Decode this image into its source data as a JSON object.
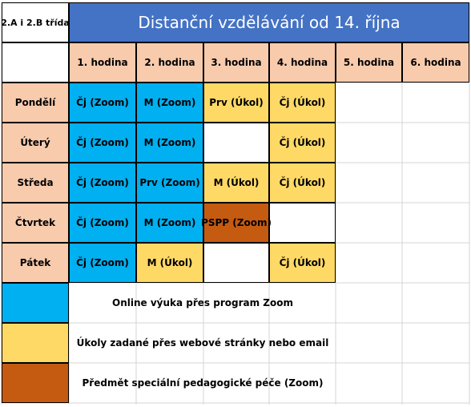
{
  "corner_label": "2.A i 2.B třída",
  "title": "Distanční vzdělávání  od 14. října",
  "hours": [
    "1. hodina",
    "2. hodina",
    "3. hodina",
    "4. hodina",
    "5. hodina",
    "6. hodina"
  ],
  "rows": [
    {
      "day": "Pondělí",
      "cells": [
        {
          "text": "Čj (Zoom)",
          "type": "zoom"
        },
        {
          "text": "M (Zoom)",
          "type": "zoom"
        },
        {
          "text": "Prv (Úkol)",
          "type": "ukol"
        },
        {
          "text": "Čj (Úkol)",
          "type": "ukol"
        },
        {
          "text": "",
          "type": "empty"
        },
        {
          "text": "",
          "type": "empty"
        }
      ]
    },
    {
      "day": "Úterý",
      "cells": [
        {
          "text": "Čj (Zoom)",
          "type": "zoom"
        },
        {
          "text": "M (Zoom)",
          "type": "zoom"
        },
        {
          "text": "",
          "type": "blank"
        },
        {
          "text": "Čj (Úkol)",
          "type": "ukol"
        },
        {
          "text": "",
          "type": "empty"
        },
        {
          "text": "",
          "type": "empty"
        }
      ]
    },
    {
      "day": "Středa",
      "cells": [
        {
          "text": "Čj (Zoom)",
          "type": "zoom"
        },
        {
          "text": "Prv (Zoom)",
          "type": "zoom"
        },
        {
          "text": "M (Úkol)",
          "type": "ukol"
        },
        {
          "text": "Čj (Úkol)",
          "type": "ukol"
        },
        {
          "text": "",
          "type": "empty"
        },
        {
          "text": "",
          "type": "empty"
        }
      ]
    },
    {
      "day": "Čtvrtek",
      "cells": [
        {
          "text": "Čj (Zoom)",
          "type": "zoom"
        },
        {
          "text": "M (Zoom)",
          "type": "zoom"
        },
        {
          "text": "PSPP (Zoom)",
          "type": "pspp"
        },
        {
          "text": "",
          "type": "blank"
        },
        {
          "text": "",
          "type": "empty"
        },
        {
          "text": "",
          "type": "empty"
        }
      ]
    },
    {
      "day": "Pátek",
      "cells": [
        {
          "text": "Čj (Zoom)",
          "type": "zoom"
        },
        {
          "text": "M (Úkol)",
          "type": "ukol"
        },
        {
          "text": "",
          "type": "blank"
        },
        {
          "text": "Čj (Úkol)",
          "type": "ukol"
        },
        {
          "text": "",
          "type": "empty"
        },
        {
          "text": "",
          "type": "empty"
        }
      ]
    }
  ],
  "legend": [
    {
      "type": "zoom",
      "text": "Online výuka přes program Zoom"
    },
    {
      "type": "ukol",
      "text": "Úkoly zadané přes webové stránky nebo email"
    },
    {
      "type": "pspp",
      "text": "Předmět speciální pedagogické péče (Zoom)"
    }
  ],
  "colors": {
    "title_bg": "#4472c4",
    "header_bg": "#f8cbad",
    "zoom": "#00b0f0",
    "ukol": "#ffd966",
    "pspp": "#c55a11"
  }
}
